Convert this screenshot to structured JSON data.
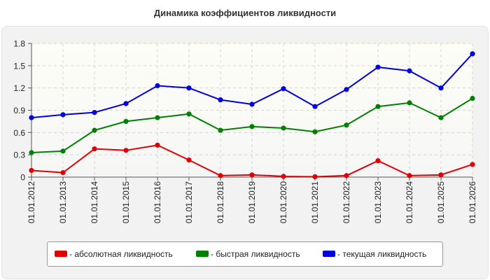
{
  "title": "Динамика коэффициентов ликвидности",
  "chart_data": {
    "type": "line",
    "title": "Динамика коэффициентов ликвидности",
    "categories": [
      "01.01.2012",
      "01.01.2013",
      "01.01.2014",
      "01.01.2015",
      "01.01.2016",
      "01.01.2017",
      "01.01.2018",
      "01.01.2019",
      "01.01.2020",
      "01.01.2021",
      "01.01.2022",
      "01.01.2023",
      "01.01.2024",
      "01.01.2025",
      "01.01.2026"
    ],
    "ylim": [
      0,
      1.8
    ],
    "yticks": [
      "0",
      "0.3",
      "0.6",
      "0.9",
      "1.2",
      "1.5",
      "1.8"
    ],
    "grid": true,
    "legend_position": "bottom",
    "series": [
      {
        "name": "- абсолютная ликвидность",
        "color": "#e00000",
        "values": [
          0.09,
          0.06,
          0.38,
          0.36,
          0.43,
          0.23,
          0.02,
          0.03,
          0.01,
          0.005,
          0.02,
          0.22,
          0.02,
          0.03,
          0.17
        ]
      },
      {
        "name": "- быстрая ликвидность",
        "color": "#008000",
        "values": [
          0.33,
          0.35,
          0.63,
          0.75,
          0.8,
          0.85,
          0.63,
          0.68,
          0.66,
          0.61,
          0.7,
          0.95,
          1.0,
          0.8,
          1.06
        ]
      },
      {
        "name": "- текущая ликвидность",
        "color": "#0000e0",
        "values": [
          0.8,
          0.84,
          0.87,
          0.99,
          1.23,
          1.2,
          1.04,
          0.98,
          1.19,
          0.95,
          1.18,
          1.48,
          1.43,
          1.2,
          1.66
        ]
      }
    ]
  }
}
